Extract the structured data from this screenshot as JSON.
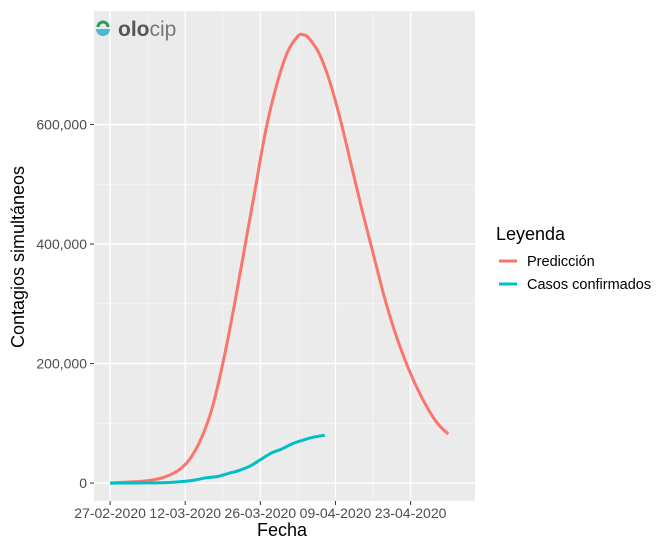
{
  "logo": {
    "text_bold": "olo",
    "text_light": "cip"
  },
  "chart_data": {
    "type": "line",
    "xlabel": "Fecha",
    "ylabel": "Contagios simultáneos",
    "x_ticks": [
      "27-02-2020",
      "12-03-2020",
      "26-03-2020",
      "09-04-2020",
      "23-04-2020"
    ],
    "y_ticks": [
      {
        "value": 0,
        "label": "0"
      },
      {
        "value": 200000,
        "label": "200,000"
      },
      {
        "value": 400000,
        "label": "400,000"
      },
      {
        "value": 600000,
        "label": "600,000"
      }
    ],
    "xlim": [
      "2020-02-24",
      "2020-05-05"
    ],
    "ylim": [
      -30000,
      790000
    ],
    "grid": true,
    "legend": {
      "title": "Leyenda",
      "position": "right"
    },
    "series": [
      {
        "name": "Predicción",
        "color": "#F8766D",
        "points": [
          [
            "2020-02-27",
            0
          ],
          [
            "2020-03-01",
            1500
          ],
          [
            "2020-03-04",
            3000
          ],
          [
            "2020-03-07",
            7000
          ],
          [
            "2020-03-09",
            13000
          ],
          [
            "2020-03-11",
            23000
          ],
          [
            "2020-03-13",
            42000
          ],
          [
            "2020-03-15",
            75000
          ],
          [
            "2020-03-17",
            125000
          ],
          [
            "2020-03-19",
            200000
          ],
          [
            "2020-03-21",
            290000
          ],
          [
            "2020-03-23",
            390000
          ],
          [
            "2020-03-25",
            490000
          ],
          [
            "2020-03-27",
            590000
          ],
          [
            "2020-03-29",
            665000
          ],
          [
            "2020-03-31",
            720000
          ],
          [
            "2020-04-02",
            748000
          ],
          [
            "2020-04-03",
            750000
          ],
          [
            "2020-04-04",
            745000
          ],
          [
            "2020-04-06",
            718000
          ],
          [
            "2020-04-08",
            670000
          ],
          [
            "2020-04-10",
            605000
          ],
          [
            "2020-04-12",
            530000
          ],
          [
            "2020-04-14",
            455000
          ],
          [
            "2020-04-16",
            385000
          ],
          [
            "2020-04-18",
            315000
          ],
          [
            "2020-04-20",
            255000
          ],
          [
            "2020-04-22",
            205000
          ],
          [
            "2020-04-24",
            163000
          ],
          [
            "2020-04-26",
            128000
          ],
          [
            "2020-04-28",
            100000
          ],
          [
            "2020-04-30",
            82000
          ]
        ]
      },
      {
        "name": "Casos confirmados",
        "color": "#00BFC4",
        "points": [
          [
            "2020-02-27",
            0
          ],
          [
            "2020-03-05",
            300
          ],
          [
            "2020-03-09",
            1000
          ],
          [
            "2020-03-12",
            3000
          ],
          [
            "2020-03-14",
            5500
          ],
          [
            "2020-03-16",
            9000
          ],
          [
            "2020-03-18",
            11000
          ],
          [
            "2020-03-20",
            16000
          ],
          [
            "2020-03-22",
            21000
          ],
          [
            "2020-03-24",
            28000
          ],
          [
            "2020-03-26",
            39000
          ],
          [
            "2020-03-28",
            50000
          ],
          [
            "2020-03-30",
            57000
          ],
          [
            "2020-04-01",
            66000
          ],
          [
            "2020-04-03",
            72000
          ],
          [
            "2020-04-05",
            77000
          ],
          [
            "2020-04-07",
            80000
          ]
        ]
      }
    ]
  }
}
